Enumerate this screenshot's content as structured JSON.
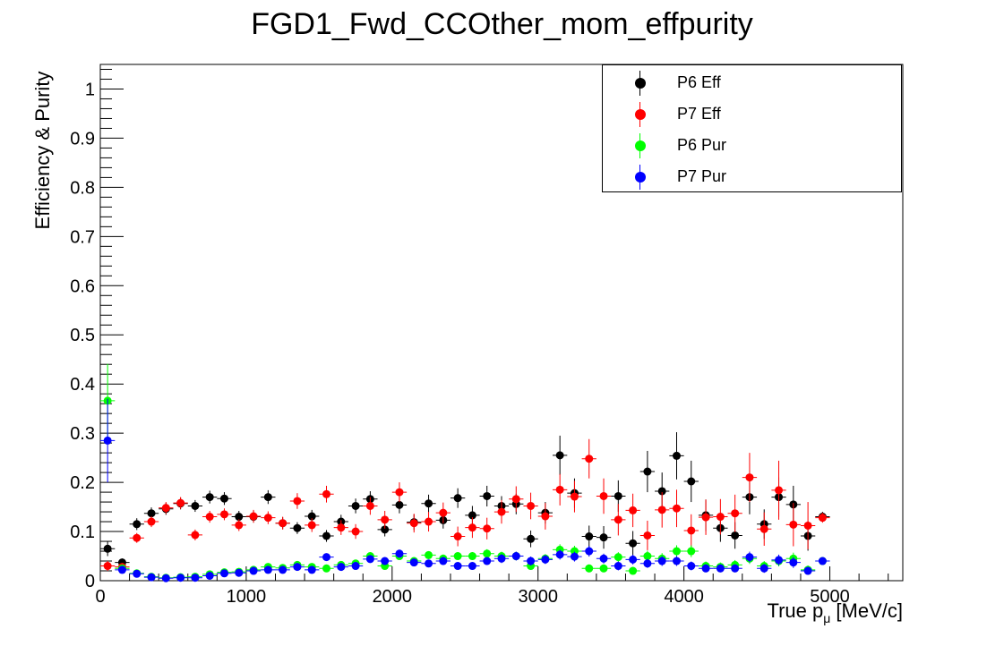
{
  "chart_data": {
    "type": "scatter",
    "title": "FGD1_Fwd_CCOther_mom_effpurity",
    "xlabel_main": "True p",
    "xlabel_sub": "μ",
    "xlabel_unit": " [MeV/c]",
    "ylabel": "Efficiency & Purity",
    "xlim": [
      0,
      5500
    ],
    "ylim": [
      0,
      1.05
    ],
    "x_ticks": [
      "0",
      "1000",
      "2000",
      "3000",
      "4000",
      "5000"
    ],
    "y_ticks": [
      "0",
      "0.1",
      "0.2",
      "0.3",
      "0.4",
      "0.5",
      "0.6",
      "0.7",
      "0.8",
      "0.9",
      "1"
    ],
    "grid": false,
    "legend_position": "top-right",
    "x_bin_centers": [
      50,
      150,
      250,
      350,
      450,
      550,
      650,
      750,
      850,
      950,
      1050,
      1150,
      1250,
      1350,
      1450,
      1550,
      1650,
      1750,
      1850,
      1950,
      2050,
      2150,
      2250,
      2350,
      2450,
      2550,
      2650,
      2750,
      2850,
      2950,
      3050,
      3150,
      3250,
      3350,
      3450,
      3550,
      3650,
      3750,
      3850,
      3950,
      4050,
      4150,
      4250,
      4350,
      4450,
      4550,
      4650,
      4750,
      4850,
      4950
    ],
    "x_half_width": 50,
    "series": [
      {
        "name": "P6 Eff",
        "color": "#000000",
        "values": [
          0.065,
          0.037,
          0.115,
          0.137,
          0.146,
          0.157,
          0.152,
          0.17,
          0.167,
          0.13,
          0.13,
          0.17,
          0.117,
          0.107,
          0.131,
          0.091,
          0.12,
          0.152,
          0.166,
          0.104,
          0.154,
          0.119,
          0.157,
          0.123,
          0.168,
          0.133,
          0.172,
          0.152,
          0.156,
          0.085,
          0.138,
          0.255,
          0.178,
          0.09,
          0.088,
          0.172,
          0.076,
          0.222,
          0.182,
          0.254,
          0.202,
          0.133,
          0.107,
          0.092,
          0.17,
          0.115,
          0.17,
          0.155,
          0.091,
          0.13
        ],
        "errors": [
          0.015,
          0.008,
          0.012,
          0.012,
          0.012,
          0.012,
          0.012,
          0.013,
          0.013,
          0.012,
          0.012,
          0.014,
          0.012,
          0.012,
          0.013,
          0.012,
          0.014,
          0.015,
          0.016,
          0.014,
          0.017,
          0.016,
          0.018,
          0.017,
          0.02,
          0.019,
          0.021,
          0.02,
          0.021,
          0.017,
          0.022,
          0.04,
          0.03,
          0.022,
          0.023,
          0.032,
          0.025,
          0.042,
          0.038,
          0.048,
          0.042,
          0.032,
          0.028,
          0.027,
          0.035,
          0.03,
          0.04,
          0.038,
          0.03,
          0.01
        ]
      },
      {
        "name": "P7 Eff",
        "color": "#ff0000",
        "values": [
          0.03,
          0.028,
          0.087,
          0.12,
          0.148,
          0.158,
          0.093,
          0.13,
          0.135,
          0.113,
          0.131,
          0.128,
          0.117,
          0.162,
          0.113,
          0.176,
          0.108,
          0.1,
          0.152,
          0.124,
          0.18,
          0.117,
          0.12,
          0.138,
          0.09,
          0.108,
          0.106,
          0.14,
          0.166,
          0.152,
          0.131,
          0.185,
          0.171,
          0.248,
          0.172,
          0.124,
          0.143,
          0.092,
          0.144,
          0.147,
          0.102,
          0.129,
          0.13,
          0.137,
          0.21,
          0.105,
          0.184,
          0.114,
          0.112,
          0.128
        ],
        "errors": [
          0.01,
          0.008,
          0.01,
          0.011,
          0.012,
          0.012,
          0.011,
          0.012,
          0.012,
          0.012,
          0.013,
          0.013,
          0.013,
          0.016,
          0.014,
          0.017,
          0.015,
          0.015,
          0.018,
          0.018,
          0.02,
          0.019,
          0.02,
          0.021,
          0.02,
          0.021,
          0.022,
          0.024,
          0.026,
          0.027,
          0.027,
          0.032,
          0.032,
          0.04,
          0.036,
          0.032,
          0.034,
          0.03,
          0.036,
          0.038,
          0.033,
          0.036,
          0.036,
          0.038,
          0.05,
          0.034,
          0.06,
          0.044,
          0.048,
          0.01
        ]
      },
      {
        "name": "P6 Pur",
        "color": "#00ff00",
        "values": [
          0.366,
          0.025,
          0.015,
          0.008,
          0.006,
          0.007,
          0.008,
          0.013,
          0.017,
          0.018,
          0.022,
          0.028,
          0.026,
          0.032,
          0.028,
          0.025,
          0.032,
          0.035,
          0.05,
          0.03,
          0.05,
          0.04,
          0.052,
          0.045,
          0.05,
          0.05,
          0.055,
          0.05,
          0.05,
          0.03,
          0.045,
          0.063,
          0.06,
          0.025,
          0.025,
          0.048,
          0.02,
          0.05,
          0.045,
          0.06,
          0.06,
          0.03,
          0.028,
          0.032,
          0.045,
          0.03,
          0.04,
          0.045,
          0.022,
          0.04
        ],
        "errors": [
          0.075,
          0.004,
          0.003,
          0.002,
          0.002,
          0.002,
          0.002,
          0.003,
          0.003,
          0.003,
          0.004,
          0.004,
          0.004,
          0.005,
          0.005,
          0.005,
          0.005,
          0.006,
          0.007,
          0.006,
          0.008,
          0.007,
          0.008,
          0.008,
          0.008,
          0.008,
          0.009,
          0.009,
          0.009,
          0.008,
          0.009,
          0.011,
          0.011,
          0.008,
          0.008,
          0.01,
          0.007,
          0.011,
          0.011,
          0.012,
          0.012,
          0.009,
          0.009,
          0.01,
          0.011,
          0.01,
          0.011,
          0.012,
          0.009,
          0.005
        ]
      },
      {
        "name": "P7 Pur",
        "color": "#0000ff",
        "values": [
          0.285,
          0.022,
          0.014,
          0.007,
          0.005,
          0.006,
          0.006,
          0.01,
          0.015,
          0.016,
          0.02,
          0.022,
          0.022,
          0.028,
          0.022,
          0.048,
          0.028,
          0.03,
          0.044,
          0.04,
          0.055,
          0.037,
          0.035,
          0.04,
          0.03,
          0.03,
          0.04,
          0.045,
          0.05,
          0.04,
          0.043,
          0.053,
          0.049,
          0.06,
          0.045,
          0.03,
          0.043,
          0.035,
          0.04,
          0.04,
          0.03,
          0.025,
          0.025,
          0.025,
          0.048,
          0.025,
          0.042,
          0.037,
          0.02,
          0.04
        ],
        "errors": [
          0.085,
          0.004,
          0.003,
          0.002,
          0.002,
          0.002,
          0.002,
          0.003,
          0.003,
          0.003,
          0.004,
          0.004,
          0.004,
          0.005,
          0.004,
          0.007,
          0.005,
          0.006,
          0.007,
          0.007,
          0.008,
          0.007,
          0.007,
          0.008,
          0.007,
          0.007,
          0.008,
          0.009,
          0.009,
          0.009,
          0.009,
          0.01,
          0.01,
          0.011,
          0.01,
          0.009,
          0.01,
          0.009,
          0.01,
          0.01,
          0.009,
          0.008,
          0.008,
          0.008,
          0.011,
          0.009,
          0.011,
          0.011,
          0.008,
          0.005
        ]
      }
    ]
  }
}
